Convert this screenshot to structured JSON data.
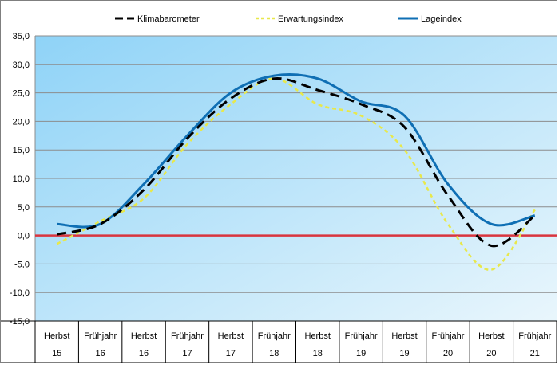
{
  "chart_data": {
    "type": "line",
    "title": "",
    "xlabel": "",
    "ylabel": "",
    "ylim": [
      -15,
      35
    ],
    "yticks": [
      35,
      30,
      25,
      20,
      15,
      10,
      5,
      0,
      -5,
      -10,
      -15
    ],
    "ytick_labels": [
      "35,0",
      "30,0",
      "25,0",
      "20,0",
      "15,0",
      "10,0",
      "5,0",
      "0,0",
      "-5,0",
      "-10,0",
      "-15,0"
    ],
    "categories": [
      {
        "season": "Herbst",
        "year": "15"
      },
      {
        "season": "Frühjahr",
        "year": "16"
      },
      {
        "season": "Herbst",
        "year": "16"
      },
      {
        "season": "Frühjahr",
        "year": "17"
      },
      {
        "season": "Herbst",
        "year": "17"
      },
      {
        "season": "Frühjahr",
        "year": "18"
      },
      {
        "season": "Herbst",
        "year": "18"
      },
      {
        "season": "Frühjahr",
        "year": "19"
      },
      {
        "season": "Herbst",
        "year": "19"
      },
      {
        "season": "Frühjahr",
        "year": "20"
      },
      {
        "season": "Herbst",
        "year": "20"
      },
      {
        "season": "Frühjahr",
        "year": "21"
      }
    ],
    "series": [
      {
        "name": "Klimabarometer",
        "color": "#000000",
        "style": "dashed",
        "values": [
          0.2,
          2.0,
          8.0,
          17.0,
          24.0,
          27.5,
          25.5,
          23.0,
          19.0,
          7.0,
          -1.8,
          3.5
        ]
      },
      {
        "name": "Erwartungsindex",
        "color": "#e8e84a",
        "style": "dashed",
        "values": [
          -1.5,
          2.5,
          6.5,
          16.0,
          23.0,
          27.5,
          23.0,
          21.0,
          15.0,
          2.0,
          -6.0,
          4.5
        ]
      },
      {
        "name": "Lageindex",
        "color": "#0f6fb4",
        "style": "solid",
        "values": [
          2.0,
          2.0,
          9.0,
          17.5,
          25.0,
          28.0,
          27.5,
          23.5,
          21.0,
          9.0,
          2.0,
          3.5
        ]
      }
    ],
    "reference_line": {
      "value": 0,
      "color": "#d9353e"
    },
    "legend": "top"
  }
}
